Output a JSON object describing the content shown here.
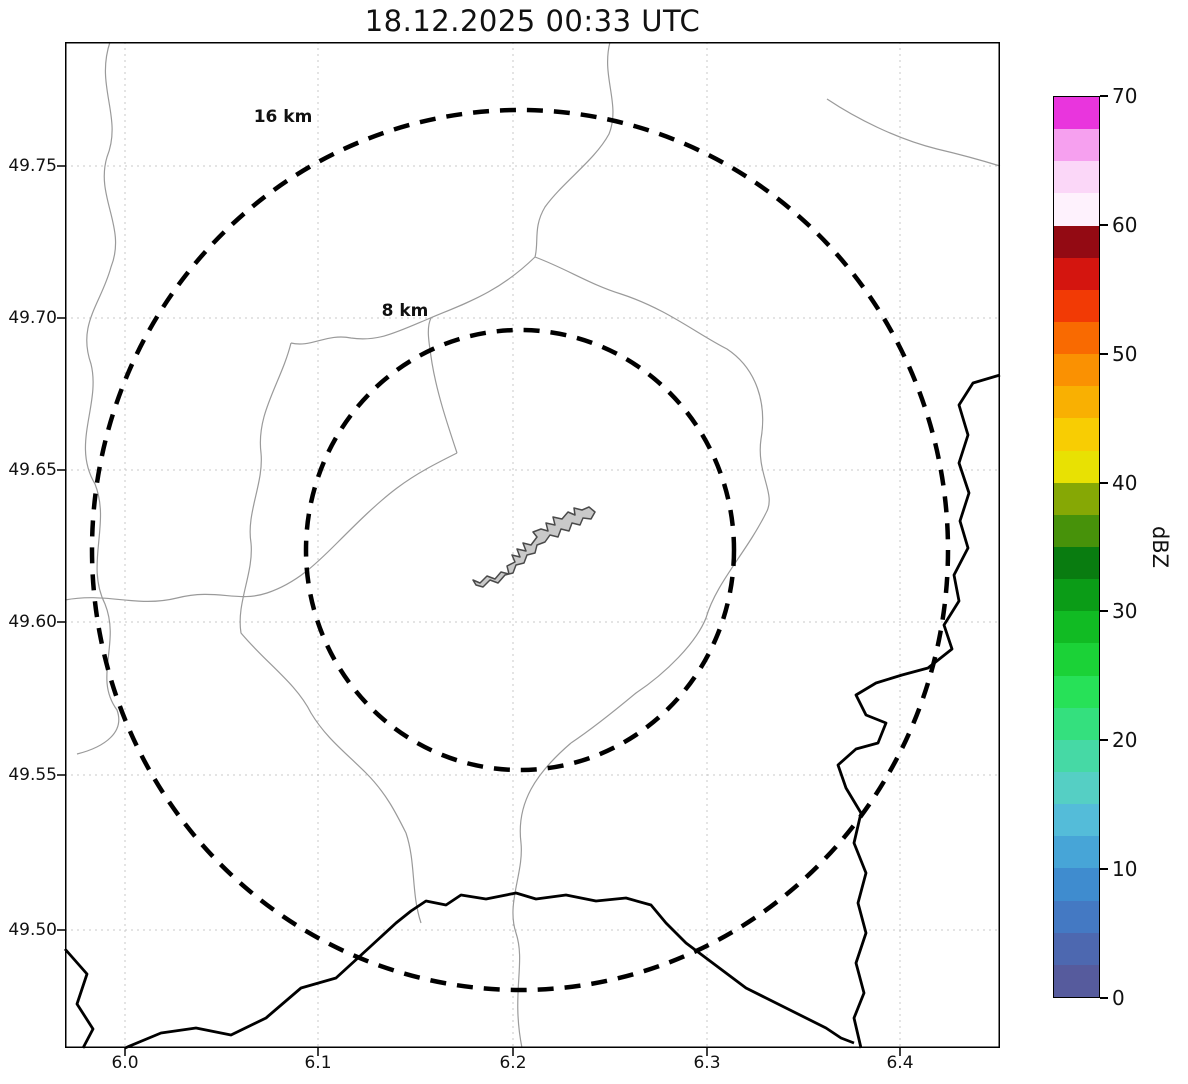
{
  "title": "18.12.2025 00:33 UTC",
  "map": {
    "x_ticks": [
      "6.0",
      "6.1",
      "6.2",
      "6.3",
      "6.4"
    ],
    "y_ticks": [
      "49.75",
      "49.70",
      "49.65",
      "49.60",
      "49.55",
      "49.50"
    ],
    "range_rings": {
      "outer_label": "16 km",
      "inner_label": "8 km"
    }
  },
  "colorbar": {
    "label": "dBZ",
    "ticks_top_to_bottom": [
      "70",
      "60",
      "50",
      "40",
      "30",
      "20",
      "10",
      "0"
    ],
    "min": 0,
    "max": 70,
    "bands_bottom_to_top": [
      "#565b9d",
      "#4d68b0",
      "#4479c3",
      "#3f8ccf",
      "#47a5d7",
      "#54bcd9",
      "#55cfc4",
      "#46d9a5",
      "#34e07e",
      "#27e158",
      "#1bd237",
      "#11bb23",
      "#0b9c17",
      "#097c10",
      "#47920a",
      "#86a805",
      "#e8e103",
      "#f8cd03",
      "#f9b002",
      "#fa9102",
      "#f96a01",
      "#f23a05",
      "#d4150f",
      "#930a13",
      "#fef2fd",
      "#fbd7f8",
      "#f6a0ef",
      "#e935dd"
    ]
  }
}
